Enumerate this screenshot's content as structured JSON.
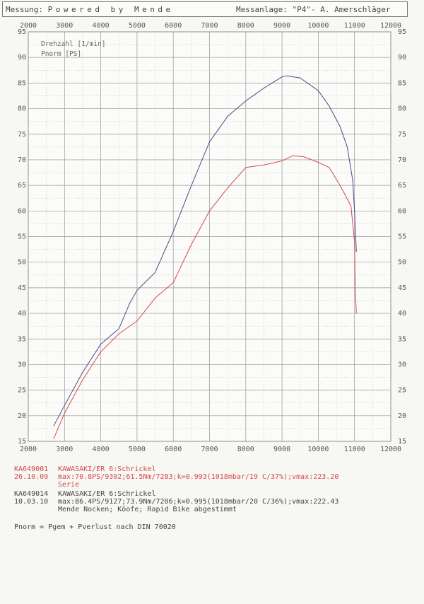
{
  "header": {
    "label_left": "Messung:",
    "brand": "Powered by Mende",
    "location": "Messanlage: \"P4\"- A. Amerschläger"
  },
  "chart_data": {
    "type": "line",
    "xlim": [
      2000,
      12000
    ],
    "ylim": [
      15,
      95
    ],
    "x_ticks": [
      2000,
      3000,
      4000,
      5000,
      6000,
      7000,
      8000,
      9000,
      10000,
      11000,
      12000
    ],
    "x_tick_labels": [
      "2000",
      "3000",
      "4000",
      "5000",
      "6000",
      "7000",
      "8000",
      "9000",
      "10000",
      "11000",
      "12000"
    ],
    "y_ticks": [
      15,
      20,
      25,
      30,
      35,
      40,
      45,
      50,
      55,
      60,
      65,
      70,
      75,
      80,
      85,
      90,
      95
    ],
    "y_tick_labels": [
      "15",
      "20",
      "25",
      "30",
      "35",
      "40",
      "45",
      "50",
      "55",
      "60",
      "65",
      "70",
      "75",
      "80",
      "85",
      "90",
      "95"
    ],
    "grid": true,
    "legend_inside": [
      "Drehzahl [1/min]",
      "Pnorm [PS]"
    ],
    "series": [
      {
        "color": "#d44a4a",
        "x": [
          2700,
          3000,
          3500,
          4000,
          4500,
          5000,
          5500,
          6000,
          6500,
          7000,
          7500,
          8000,
          8500,
          9000,
          9302,
          9600,
          10000,
          10300,
          10600,
          10900,
          11000,
          11020,
          11050
        ],
        "y": [
          15.5,
          20.5,
          27,
          32.5,
          36,
          38.5,
          43,
          46,
          53.5,
          60,
          64.5,
          68.5,
          69,
          69.8,
          70.8,
          70.6,
          69.5,
          68.5,
          65,
          61,
          54,
          45,
          40
        ]
      },
      {
        "color": "#4a4a8a",
        "x": [
          2700,
          3000,
          3500,
          4000,
          4500,
          4800,
          5000,
          5500,
          6000,
          6500,
          7000,
          7500,
          8000,
          8500,
          9000,
          9127,
          9500,
          10000,
          10300,
          10600,
          10800,
          10950,
          11000,
          11050
        ],
        "y": [
          18,
          22,
          28.5,
          34,
          37,
          42,
          44.5,
          48,
          56,
          65,
          73.5,
          78.5,
          81.5,
          84,
          86.2,
          86.4,
          86,
          83.5,
          80.5,
          76.5,
          72.5,
          66,
          60,
          52
        ]
      }
    ]
  },
  "runs": [
    {
      "id": "KA649001",
      "vehicle": "KAWASAKI/ER 6:Schrickel",
      "date": "26.10.09",
      "stats": "max:70.8PS/9302;61.5Nm/7283;k=0.993(1018mbar/19 C/37%);vmax:223.20",
      "note": "Serie"
    },
    {
      "id": "KA649014",
      "vehicle": "KAWASAKI/ER 6:Schrickel",
      "date": "10.03.10",
      "stats": "max:86.4PS/9127;73.9Nm/7206;k=0.995(1018mbar/20 C/36%);vmax:222.43",
      "note": "Mende Nocken; Köofe; Rapid Bike abgestimmt"
    }
  ],
  "footer": {
    "formula": "Pnorm = Pgem + Pverlust nach DIN 70020"
  }
}
